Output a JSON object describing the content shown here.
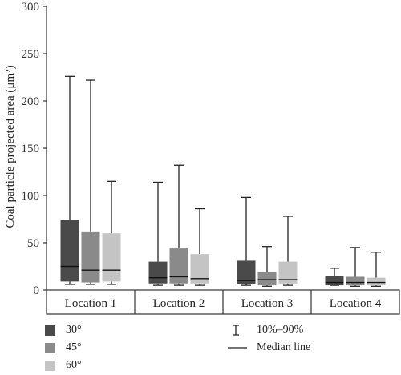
{
  "chart_data": {
    "type": "box",
    "ylabel": "Coal particle projected area (μm²)",
    "ylim": [
      0,
      300
    ],
    "yticks": [
      0,
      50,
      100,
      150,
      200,
      250,
      300
    ],
    "categories": [
      "Location 1",
      "Location 2",
      "Location 3",
      "Location 4"
    ],
    "series": [
      {
        "name": "30°",
        "color": "#4a4a4a",
        "boxes": [
          {
            "p10": 6,
            "q1": 9,
            "median": 25,
            "q3": 74,
            "p90": 226
          },
          {
            "p10": 5,
            "q1": 7,
            "median": 13,
            "q3": 30,
            "p90": 114
          },
          {
            "p10": 5,
            "q1": 6,
            "median": 10,
            "q3": 31,
            "p90": 98
          },
          {
            "p10": 5,
            "q1": 5,
            "median": 8,
            "q3": 15,
            "p90": 23
          }
        ]
      },
      {
        "name": "45°",
        "color": "#8a8a8a",
        "boxes": [
          {
            "p10": 6,
            "q1": 8,
            "median": 21,
            "q3": 62,
            "p90": 222
          },
          {
            "p10": 5,
            "q1": 7,
            "median": 14,
            "q3": 44,
            "p90": 132
          },
          {
            "p10": 4,
            "q1": 5,
            "median": 11,
            "q3": 19,
            "p90": 46
          },
          {
            "p10": 4,
            "q1": 5,
            "median": 8,
            "q3": 14,
            "p90": 45
          }
        ]
      },
      {
        "name": "60°",
        "color": "#c4c4c4",
        "boxes": [
          {
            "p10": 6,
            "q1": 9,
            "median": 21,
            "q3": 60,
            "p90": 115
          },
          {
            "p10": 5,
            "q1": 7,
            "median": 12,
            "q3": 38,
            "p90": 86
          },
          {
            "p10": 5,
            "q1": 7,
            "median": 11,
            "q3": 30,
            "p90": 78
          },
          {
            "p10": 4,
            "q1": 5,
            "median": 8,
            "q3": 13,
            "p90": 40
          }
        ]
      }
    ],
    "legend": {
      "whisker_label": "10%–90%",
      "median_label": "Median line"
    }
  }
}
